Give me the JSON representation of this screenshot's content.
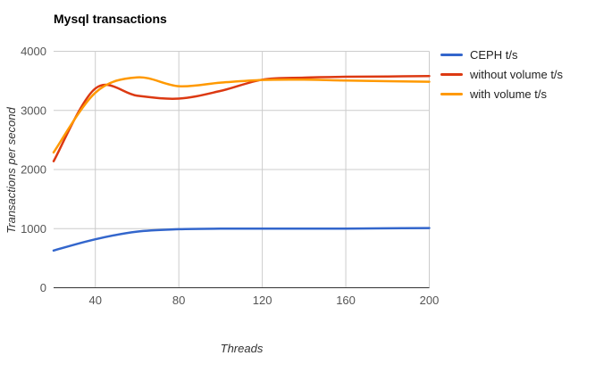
{
  "chart_data": {
    "type": "line",
    "title": "Mysql transactions",
    "xlabel": "Threads",
    "ylabel": "Transactions per second",
    "x": [
      20,
      40,
      60,
      80,
      100,
      120,
      140,
      160,
      180,
      200
    ],
    "series": [
      {
        "name": "CEPH t/s",
        "color": "#3366CC",
        "values": [
          630,
          820,
          950,
          990,
          1000,
          1000,
          1000,
          1000,
          1005,
          1010
        ]
      },
      {
        "name": "without volume t/s",
        "color": "#DC3912",
        "values": [
          2140,
          3370,
          3250,
          3200,
          3330,
          3520,
          3555,
          3570,
          3575,
          3580
        ]
      },
      {
        "name": "with volume t/s",
        "color": "#FF9900",
        "values": [
          2290,
          3300,
          3560,
          3410,
          3470,
          3515,
          3520,
          3505,
          3495,
          3485
        ]
      }
    ],
    "xlim": [
      20,
      200
    ],
    "ylim": [
      0,
      4000
    ],
    "xticks": [
      40,
      80,
      120,
      160,
      200
    ],
    "yticks": [
      0,
      1000,
      2000,
      3000,
      4000
    ],
    "grid": true,
    "legend_position": "right",
    "smooth_lines": true
  },
  "colors": {
    "background": "#ffffff",
    "gridline": "#cccccc",
    "axis_line": "#333333",
    "tick_label": "#555555",
    "axis_title": "#333333",
    "title": "#000000",
    "legend_text": "#222222"
  }
}
